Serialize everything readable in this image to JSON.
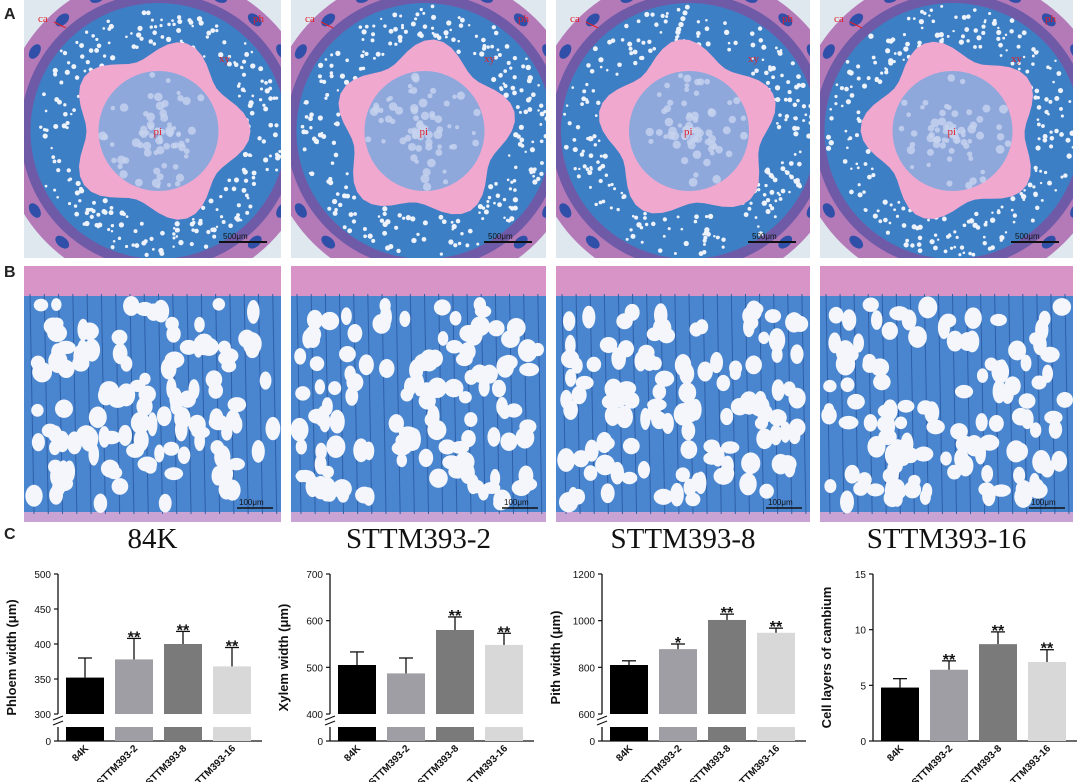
{
  "panel_labels": {
    "a": "A",
    "b": "B",
    "c": "C"
  },
  "genotypes": [
    "84K",
    "STTM393-2",
    "STTM393-8",
    "STTM393-16"
  ],
  "micrograph_row_a": {
    "scale_bar": "500μm",
    "tissue_labels": {
      "ca": "ca",
      "ph": "ph",
      "xy": "xy",
      "pi": "pi"
    },
    "colors": {
      "pith": "#8fa8dc",
      "pith_ring": "#f0a8cf",
      "xylem": "#3d7fc4",
      "outer": "#b47ab8",
      "background": "#dfe7ef"
    }
  },
  "micrograph_row_b": {
    "scale_bar": "100μm",
    "colors": {
      "tissue": "#4a86cf",
      "top_band": "#d894c6",
      "vessel": "#f4f6fb"
    }
  },
  "chart_data": [
    {
      "type": "bar",
      "ylabel": "Phloem width (μm)",
      "categories": [
        "84K",
        "STTM393-2",
        "STTM393-8",
        "STTM393-16"
      ],
      "values": [
        352,
        378,
        400,
        368
      ],
      "errors": [
        28,
        30,
        18,
        27
      ],
      "significance": [
        "",
        "**",
        "**",
        "**"
      ],
      "ylim": [
        300,
        500
      ],
      "yticks": [
        300,
        350,
        400,
        450,
        500
      ],
      "axis_break_label": "0",
      "bar_colors": [
        "#000000",
        "#9e9ea4",
        "#7a7a7a",
        "#d8d8d8"
      ]
    },
    {
      "type": "bar",
      "ylabel": "Xylem width (μm)",
      "categories": [
        "84K",
        "STTM393-2",
        "STTM393-8",
        "STTM393-16"
      ],
      "values": [
        505,
        487,
        580,
        548
      ],
      "errors": [
        28,
        33,
        28,
        25
      ],
      "significance": [
        "",
        "",
        "**",
        "**"
      ],
      "ylim": [
        400,
        700
      ],
      "yticks": [
        400,
        500,
        600,
        700
      ],
      "axis_break_label": "0",
      "bar_colors": [
        "#000000",
        "#9e9ea4",
        "#7a7a7a",
        "#d8d8d8"
      ]
    },
    {
      "type": "bar",
      "ylabel": "Pith width (μm)",
      "categories": [
        "84K",
        "STTM393-2",
        "STTM393-8",
        "STTM393-16"
      ],
      "values": [
        810,
        878,
        1003,
        948
      ],
      "errors": [
        18,
        22,
        25,
        20
      ],
      "significance": [
        "",
        "*",
        "**",
        "**"
      ],
      "ylim": [
        600,
        1200
      ],
      "yticks": [
        600,
        800,
        1000,
        1200
      ],
      "axis_break_label": "0",
      "bar_colors": [
        "#000000",
        "#9e9ea4",
        "#7a7a7a",
        "#d8d8d8"
      ]
    },
    {
      "type": "bar",
      "ylabel": "Cell layers of cambium",
      "categories": [
        "84K",
        "STTM393-2",
        "STTM393-8",
        "STTM393-16"
      ],
      "values": [
        4.8,
        6.4,
        8.7,
        7.1
      ],
      "errors": [
        0.8,
        0.8,
        1.1,
        1.1
      ],
      "significance": [
        "",
        "**",
        "**",
        "**"
      ],
      "ylim": [
        0,
        15
      ],
      "yticks": [
        0,
        5,
        10,
        15
      ],
      "bar_colors": [
        "#000000",
        "#9e9ea4",
        "#7a7a7a",
        "#d8d8d8"
      ]
    }
  ]
}
